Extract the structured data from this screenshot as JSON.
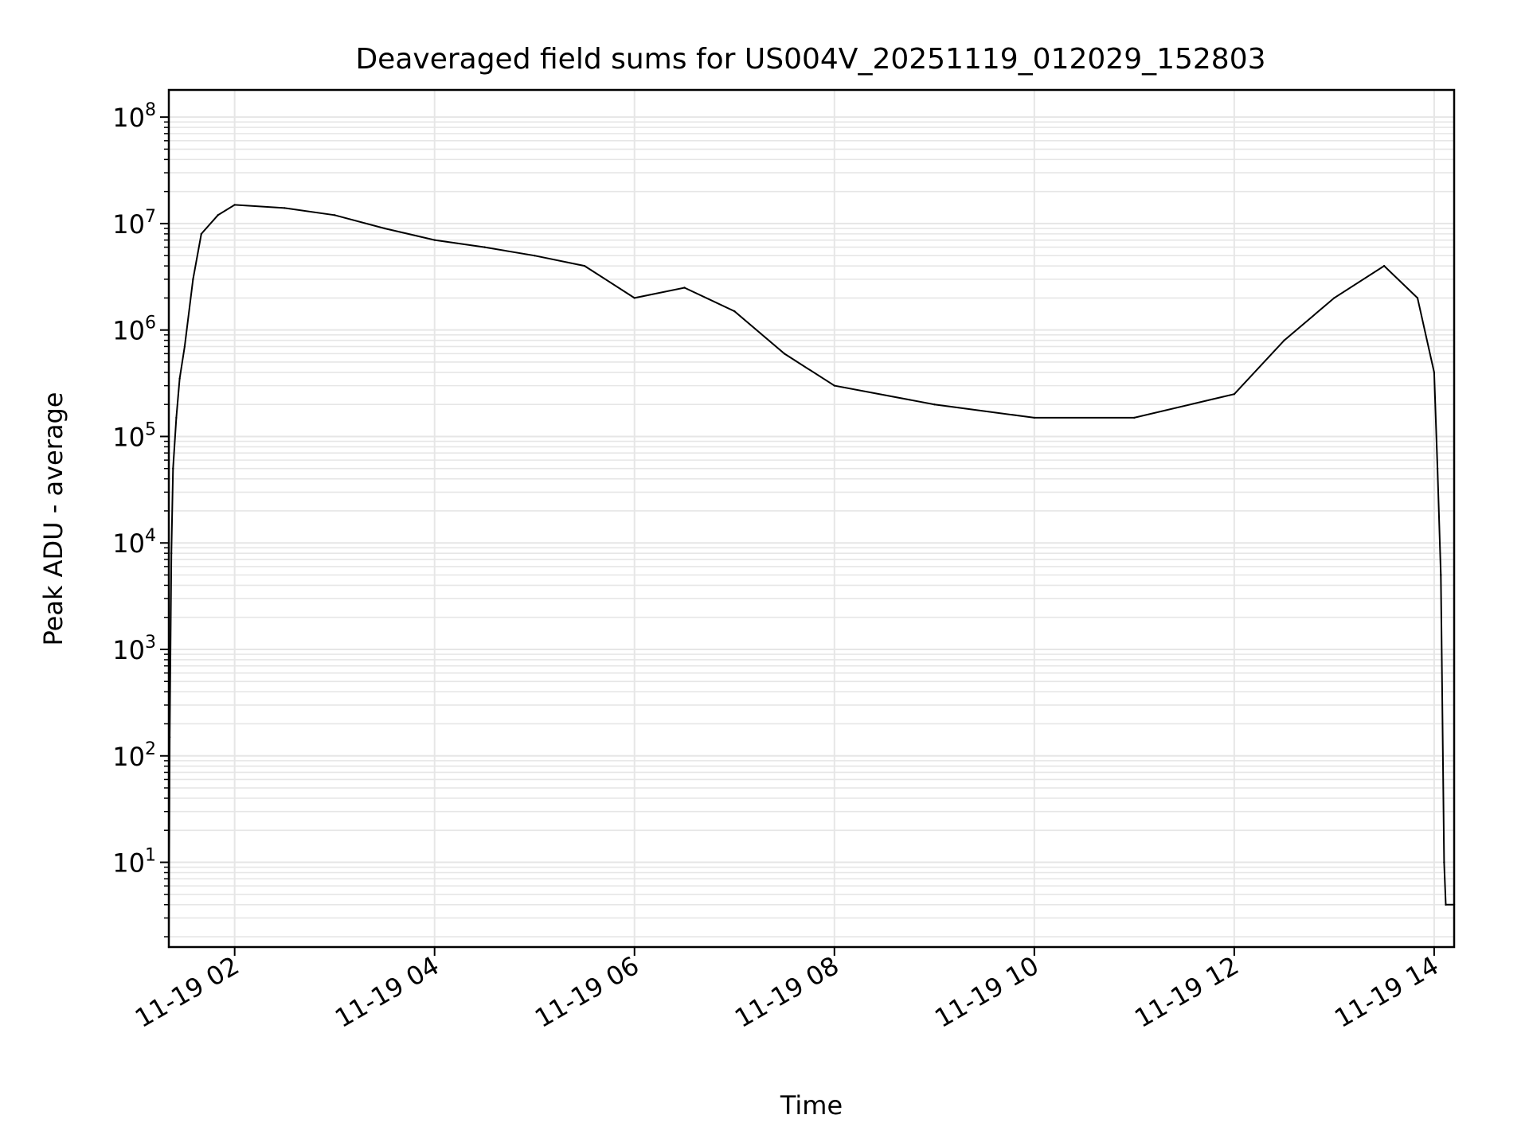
{
  "chart_data": {
    "type": "line",
    "title": "Deaveraged field sums for US004V_20251119_012029_152803",
    "xlabel": "Time",
    "ylabel": "Peak ADU - average",
    "yscale": "log",
    "grid": true,
    "line_color": "#000000",
    "grid_color": "#e6e6e6",
    "xlim": [
      "2025-11-19T01:20:29",
      "2025-11-19T14:12:00"
    ],
    "ylim": [
      1.6,
      180000000
    ],
    "x_ticks": [
      {
        "value": "2025-11-19T02:00",
        "label": "11-19 02"
      },
      {
        "value": "2025-11-19T04:00",
        "label": "11-19 04"
      },
      {
        "value": "2025-11-19T06:00",
        "label": "11-19 06"
      },
      {
        "value": "2025-11-19T08:00",
        "label": "11-19 08"
      },
      {
        "value": "2025-11-19T10:00",
        "label": "11-19 10"
      },
      {
        "value": "2025-11-19T12:00",
        "label": "11-19 12"
      },
      {
        "value": "2025-11-19T14:00",
        "label": "11-19 14"
      }
    ],
    "y_ticks": [
      {
        "value": 10,
        "base": "10",
        "exp": "1"
      },
      {
        "value": 100,
        "base": "10",
        "exp": "2"
      },
      {
        "value": 1000,
        "base": "10",
        "exp": "3"
      },
      {
        "value": 10000,
        "base": "10",
        "exp": "4"
      },
      {
        "value": 100000,
        "base": "10",
        "exp": "5"
      },
      {
        "value": 1000000,
        "base": "10",
        "exp": "6"
      },
      {
        "value": 10000000,
        "base": "10",
        "exp": "7"
      },
      {
        "value": 100000000,
        "base": "10",
        "exp": "8"
      }
    ],
    "series": [
      {
        "points": [
          [
            "2025-11-19T01:20:29",
            1.6
          ],
          [
            "2025-11-19T01:21:00",
            150
          ],
          [
            "2025-11-19T01:22:00",
            8000
          ],
          [
            "2025-11-19T01:23:00",
            50000
          ],
          [
            "2025-11-19T01:25:00",
            150000
          ],
          [
            "2025-11-19T01:27:00",
            350000
          ],
          [
            "2025-11-19T01:30:00",
            700000
          ],
          [
            "2025-11-19T01:35:00",
            3000000
          ],
          [
            "2025-11-19T01:40:00",
            8000000
          ],
          [
            "2025-11-19T01:50:00",
            12000000
          ],
          [
            "2025-11-19T02:00:00",
            15000000
          ],
          [
            "2025-11-19T02:30:00",
            14000000
          ],
          [
            "2025-11-19T03:00:00",
            12000000
          ],
          [
            "2025-11-19T03:30:00",
            9000000
          ],
          [
            "2025-11-19T04:00:00",
            7000000
          ],
          [
            "2025-11-19T04:30:00",
            6000000
          ],
          [
            "2025-11-19T05:00:00",
            5000000
          ],
          [
            "2025-11-19T05:30:00",
            4000000
          ],
          [
            "2025-11-19T06:00:00",
            2000000
          ],
          [
            "2025-11-19T06:30:00",
            2500000
          ],
          [
            "2025-11-19T07:00:00",
            1500000
          ],
          [
            "2025-11-19T07:30:00",
            600000
          ],
          [
            "2025-11-19T08:00:00",
            300000
          ],
          [
            "2025-11-19T09:00:00",
            200000
          ],
          [
            "2025-11-19T10:00:00",
            150000
          ],
          [
            "2025-11-19T11:00:00",
            150000
          ],
          [
            "2025-11-19T12:00:00",
            250000
          ],
          [
            "2025-11-19T12:30:00",
            800000
          ],
          [
            "2025-11-19T13:00:00",
            2000000
          ],
          [
            "2025-11-19T13:30:00",
            4000000
          ],
          [
            "2025-11-19T13:50:00",
            2000000
          ],
          [
            "2025-11-19T14:00:00",
            400000
          ],
          [
            "2025-11-19T14:02:00",
            50000
          ],
          [
            "2025-11-19T14:04:00",
            5000
          ],
          [
            "2025-11-19T14:06:00",
            10
          ],
          [
            "2025-11-19T14:07:00",
            4
          ],
          [
            "2025-11-19T14:12:00",
            4
          ]
        ]
      }
    ]
  }
}
